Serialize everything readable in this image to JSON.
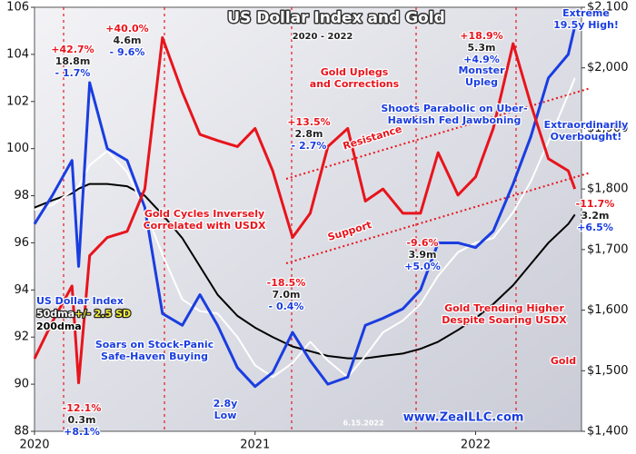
{
  "chart_data": {
    "type": "line",
    "title": "US Dollar Index and Gold",
    "subtitle": "2020 - 2022",
    "xlim": [
      2020,
      2022.48
    ],
    "xticks": [
      2020,
      2021,
      2022
    ],
    "ylim": [
      88,
      106
    ],
    "yticks": [
      88,
      90,
      92,
      94,
      96,
      98,
      100,
      102,
      104,
      106
    ],
    "y2lim": [
      1400,
      2100
    ],
    "y2ticks": [
      {
        "value": 1400,
        "label": "$1,400"
      },
      {
        "value": 1500,
        "label": "$1,500"
      },
      {
        "value": 1600,
        "label": "$1,600"
      },
      {
        "value": 1700,
        "label": "$1,700"
      },
      {
        "value": 1800,
        "label": "$1,800"
      },
      {
        "value": 1900,
        "label": "$1,900"
      },
      {
        "value": 2000,
        "label": "$2,000"
      },
      {
        "value": 2100,
        "label": "$2,100"
      }
    ],
    "x": [
      2020.0,
      2020.08,
      2020.17,
      2020.2,
      2020.25,
      2020.33,
      2020.42,
      2020.5,
      2020.58,
      2020.67,
      2020.75,
      2020.83,
      2020.92,
      2021.0,
      2021.08,
      2021.17,
      2021.25,
      2021.33,
      2021.42,
      2021.5,
      2021.58,
      2021.67,
      2021.75,
      2021.83,
      2021.92,
      2022.0,
      2022.08,
      2022.17,
      2022.25,
      2022.33,
      2022.42,
      2022.45
    ],
    "series": [
      {
        "name": "200dma",
        "color": "#000000",
        "values": [
          97.5,
          97.8,
          98.1,
          98.3,
          98.5,
          98.5,
          98.4,
          98.0,
          97.2,
          96.2,
          95.0,
          93.8,
          92.9,
          92.4,
          92.0,
          91.6,
          91.4,
          91.2,
          91.1,
          91.1,
          91.2,
          91.3,
          91.5,
          91.8,
          92.3,
          92.8,
          93.4,
          94.2,
          95.1,
          96.0,
          96.8,
          97.2
        ]
      },
      {
        "name": "50dma",
        "color": "#ffffff",
        "values": [
          97.4,
          97.6,
          98.2,
          98.4,
          99.3,
          99.9,
          99.0,
          97.4,
          95.5,
          93.6,
          93.1,
          93.0,
          92.0,
          90.8,
          90.3,
          90.9,
          91.8,
          91.0,
          90.3,
          91.2,
          92.2,
          92.7,
          93.4,
          94.6,
          95.6,
          96.0,
          96.2,
          97.3,
          98.6,
          100.3,
          102.3,
          103.0
        ]
      },
      {
        "name": "US Dollar Index",
        "color": "#1a3de0",
        "values": [
          96.8,
          98.0,
          99.5,
          95.0,
          102.8,
          100.0,
          99.5,
          97.5,
          93.0,
          92.5,
          93.8,
          92.5,
          90.7,
          89.9,
          90.5,
          92.2,
          91.0,
          90.0,
          90.3,
          92.5,
          92.8,
          93.2,
          94.0,
          96.0,
          96.0,
          95.8,
          96.5,
          98.5,
          100.5,
          103.0,
          104.0,
          105.2
        ]
      },
      {
        "name": "Gold",
        "color": "#e8141c",
        "axis": "y2",
        "values": [
          1520,
          1580,
          1640,
          1480,
          1690,
          1720,
          1730,
          1800,
          2050,
          1960,
          1890,
          1880,
          1870,
          1900,
          1830,
          1720,
          1760,
          1870,
          1900,
          1780,
          1800,
          1760,
          1760,
          1860,
          1790,
          1820,
          1900,
          2040,
          1940,
          1850,
          1830,
          1800
        ]
      }
    ],
    "band_label": "+/- 2.5 SD",
    "annotations": [
      "+42.7%",
      "18.8m",
      "- 1.7%",
      "+40.0%",
      "4.6m",
      "- 9.6%",
      "Gold Uplegs",
      "and Corrections",
      "+18.9%",
      "5.3m",
      "+4.9%",
      "Extreme",
      "19.5y High!",
      "Monster",
      "Upleg",
      "Shoots Parabolic on Uber-",
      "Hawkish Fed Jawboning",
      "Extraordinarily",
      "Overbought!",
      "+13.5%",
      "2.8m",
      "- 2.7%",
      "Resistance",
      "Gold Cycles Inversely",
      "Correlated with USDX",
      "Support",
      "-9.6%",
      "3.9m",
      "+5.0%",
      "-18.5%",
      "7.0m",
      "- 0.4%",
      "-11.7%",
      "3.2m",
      "+6.5%",
      "Gold Trending Higher",
      "Despite Soaring USDX",
      "Soars on Stock-Panic",
      "Safe-Haven Buying",
      "Gold",
      "-12.1%",
      "0.3m",
      "+8.1%",
      "2.8y",
      "Low",
      "6.15.2022",
      "www.ZealLLC.com"
    ]
  }
}
